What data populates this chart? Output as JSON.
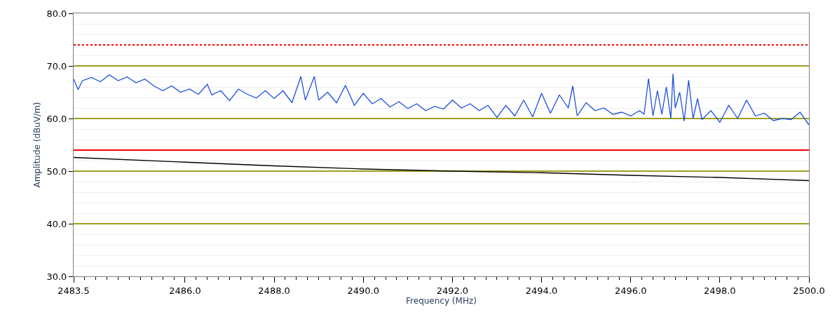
{
  "chart_data": {
    "type": "line",
    "xlabel": "Frequency (MHz)",
    "ylabel": "Amplitude (dBuV/m)",
    "xlim": [
      2483.5,
      2500
    ],
    "xticks": [
      {
        "value": 2483.5,
        "label": "2483.5"
      },
      {
        "value": 2486,
        "label": "2486.0"
      },
      {
        "value": 2488,
        "label": "2488.0"
      },
      {
        "value": 2490,
        "label": "2490.0"
      },
      {
        "value": 2492,
        "label": "2492.0"
      },
      {
        "value": 2494,
        "label": "2494.0"
      },
      {
        "value": 2496,
        "label": "2496.0"
      },
      {
        "value": 2498,
        "label": "2498.0"
      },
      {
        "value": 2500,
        "label": "2500.0"
      }
    ],
    "ylim": [
      30,
      80
    ],
    "yticks": [
      {
        "value": 30,
        "label": "30.0"
      },
      {
        "value": 40,
        "label": "40.0"
      },
      {
        "value": 50,
        "label": "50.0"
      },
      {
        "value": 60,
        "label": "60.0"
      },
      {
        "value": 70,
        "label": "70.0"
      },
      {
        "value": 80,
        "label": "80.0"
      }
    ],
    "grid": "y",
    "marker": "none",
    "line_style": "solid",
    "series": [
      {
        "color": "#1c4fe0",
        "x": [
          2483.5,
          2483.6,
          2483.7,
          2483.9,
          2484.1,
          2484.3,
          2484.5,
          2484.7,
          2484.9,
          2485.1,
          2485.3,
          2485.5,
          2485.7,
          2485.9,
          2486.1,
          2486.3,
          2486.5,
          2486.6,
          2486.8,
          2487.0,
          2487.2,
          2487.4,
          2487.6,
          2487.8,
          2488.0,
          2488.2,
          2488.4,
          2488.6,
          2488.7,
          2488.9,
          2489.0,
          2489.2,
          2489.4,
          2489.6,
          2489.8,
          2490.0,
          2490.2,
          2490.4,
          2490.6,
          2490.8,
          2491.0,
          2491.2,
          2491.4,
          2491.6,
          2491.8,
          2492.0,
          2492.2,
          2492.4,
          2492.6,
          2492.8,
          2493.0,
          2493.2,
          2493.4,
          2493.6,
          2493.8,
          2494.0,
          2494.2,
          2494.4,
          2494.6,
          2494.7,
          2494.8,
          2495.0,
          2495.2,
          2495.4,
          2495.6,
          2495.8,
          2496.0,
          2496.2,
          2496.3,
          2496.4,
          2496.5,
          2496.6,
          2496.7,
          2496.8,
          2496.9,
          2496.95,
          2497.0,
          2497.1,
          2497.2,
          2497.3,
          2497.4,
          2497.5,
          2497.6,
          2497.8,
          2498.0,
          2498.2,
          2498.4,
          2498.6,
          2498.8,
          2499.0,
          2499.2,
          2499.4,
          2499.6,
          2499.8,
          2499.9,
          2500.0
        ],
        "values": [
          67.5,
          65.5,
          67.2,
          67.8,
          67.0,
          68.3,
          67.2,
          67.9,
          66.8,
          67.5,
          66.2,
          65.3,
          66.2,
          65.0,
          65.6,
          64.6,
          66.5,
          64.5,
          65.3,
          63.4,
          65.6,
          64.6,
          63.9,
          65.3,
          63.8,
          65.3,
          63.0,
          68.0,
          63.5,
          68.0,
          63.5,
          65.0,
          63.0,
          66.3,
          62.5,
          64.8,
          62.8,
          63.8,
          62.2,
          63.2,
          61.9,
          62.8,
          61.5,
          62.3,
          61.8,
          63.5,
          62.0,
          62.8,
          61.5,
          62.5,
          60.2,
          62.5,
          60.5,
          63.5,
          60.3,
          64.8,
          61.0,
          64.5,
          62.0,
          66.2,
          60.5,
          63.0,
          61.5,
          62.0,
          60.8,
          61.2,
          60.5,
          61.5,
          60.8,
          67.6,
          60.5,
          65.3,
          60.8,
          66.0,
          60.0,
          68.5,
          62.0,
          65.0,
          59.5,
          67.3,
          60.0,
          63.8,
          59.8,
          61.5,
          59.3,
          62.5,
          60.0,
          63.5,
          60.5,
          61.0,
          59.6,
          60.0,
          59.8,
          61.2,
          60.0,
          58.8
        ]
      },
      {
        "color": "#000000",
        "x": [
          2483.5,
          2486,
          2488,
          2490,
          2492,
          2494,
          2496,
          2498,
          2500
        ],
        "values": [
          52.6,
          51.7,
          51.0,
          50.4,
          50.0,
          49.7,
          49.2,
          48.8,
          48.2
        ]
      }
    ],
    "ref_lines": [
      {
        "axis": "y",
        "value": 74,
        "color": "#ff0000",
        "line_style": "dotted"
      },
      {
        "axis": "y",
        "value": 54,
        "color": "#ff0000",
        "line_style": "solid"
      }
    ]
  }
}
